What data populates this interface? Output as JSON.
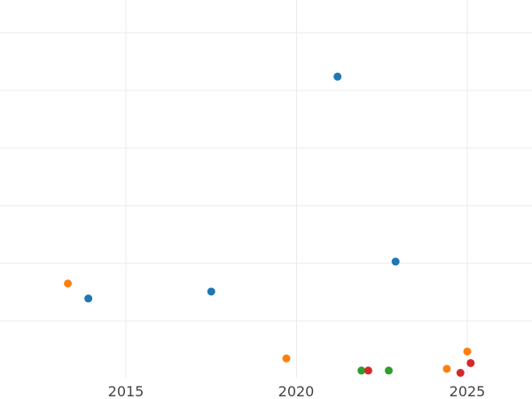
{
  "chart_data": {
    "type": "scatter",
    "title": "",
    "xlabel": "",
    "ylabel": "",
    "grid": true,
    "x_ticks": [
      "2015",
      "2020",
      "2025"
    ],
    "xlim": [
      2011.3,
      2026.9
    ],
    "ylim": [
      0,
      7
    ],
    "colors": [
      "#1f77b4",
      "#ff7f0e",
      "#2ca02c",
      "#d62728"
    ],
    "series": [
      {
        "color": "#1f77b4",
        "points": [
          {
            "x": 2013.9,
            "y": 1.39
          },
          {
            "x": 2017.5,
            "y": 1.51
          },
          {
            "x": 2021.2,
            "y": 5.24
          },
          {
            "x": 2022.9,
            "y": 2.03
          }
        ]
      },
      {
        "color": "#ff7f0e",
        "points": [
          {
            "x": 2013.3,
            "y": 1.65
          },
          {
            "x": 2019.7,
            "y": 0.35
          },
          {
            "x": 2024.4,
            "y": 0.17
          },
          {
            "x": 2025.0,
            "y": 0.47
          }
        ]
      },
      {
        "color": "#2ca02c",
        "points": [
          {
            "x": 2021.9,
            "y": 0.14
          },
          {
            "x": 2022.7,
            "y": 0.14
          }
        ]
      },
      {
        "color": "#d62728",
        "points": [
          {
            "x": 2022.1,
            "y": 0.14
          },
          {
            "x": 2024.8,
            "y": 0.1
          },
          {
            "x": 2025.1,
            "y": 0.27
          }
        ]
      }
    ]
  }
}
